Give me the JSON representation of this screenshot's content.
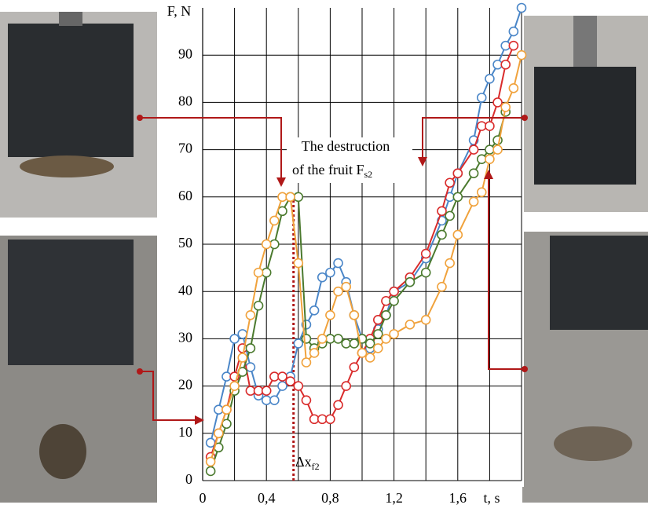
{
  "chart_data": {
    "type": "line",
    "y_label": "F, N",
    "x_label": "t, s",
    "annotation_lines": [
      "The destruction",
      "of the fruit F"
    ],
    "annotation_subscript": "s2",
    "marker_label": "Δx",
    "marker_subscript": "f2",
    "marker_x": 0.57,
    "marker_color": "#b01818",
    "x": [
      0.05,
      0.1,
      0.15,
      0.2,
      0.25,
      0.3,
      0.35,
      0.4,
      0.45,
      0.5,
      0.55,
      0.6,
      0.65,
      0.7,
      0.75,
      0.8,
      0.85,
      0.9,
      0.95,
      1.0,
      1.05,
      1.1,
      1.15,
      1.2,
      1.3,
      1.4,
      1.5,
      1.55,
      1.6,
      1.7,
      1.75,
      1.8,
      1.85,
      1.9,
      1.95,
      2.0
    ],
    "series": [
      {
        "color": "#4a86c8",
        "values": [
          8,
          15,
          22,
          30,
          31,
          24,
          18,
          17,
          17,
          20,
          22,
          29,
          33,
          36,
          43,
          44,
          46,
          42,
          35,
          30,
          28,
          32,
          35,
          40,
          42,
          47,
          55,
          60,
          65,
          72,
          81,
          85,
          88,
          92,
          95,
          100
        ]
      },
      {
        "color": "#d92b2b",
        "values": [
          5,
          10,
          15,
          22,
          28,
          19,
          19,
          19,
          22,
          22,
          21,
          20,
          17,
          13,
          13,
          13,
          16,
          20,
          24,
          27,
          30,
          34,
          38,
          40,
          43,
          48,
          57,
          63,
          65,
          70,
          75,
          75,
          80,
          88,
          92,
          null
        ]
      },
      {
        "color": "#4b7a2e",
        "values": [
          2,
          7,
          12,
          19,
          23,
          28,
          37,
          44,
          50,
          57,
          60,
          60,
          30,
          28,
          29,
          30,
          30,
          29,
          29,
          30,
          29,
          31,
          35,
          38,
          42,
          44,
          52,
          56,
          60,
          65,
          68,
          70,
          72,
          78,
          null,
          null
        ]
      },
      {
        "color": "#f0a23c",
        "values": [
          4,
          10,
          15,
          20,
          26,
          35,
          44,
          50,
          55,
          60,
          60,
          46,
          25,
          27,
          30,
          35,
          40,
          41,
          35,
          27,
          26,
          28,
          30,
          31,
          33,
          34,
          41,
          46,
          52,
          59,
          61,
          68,
          70,
          79,
          83,
          90
        ]
      }
    ],
    "xlim": [
      0,
      2.0
    ],
    "xticks": [
      0,
      {
        "value": 0.4,
        "label": "0,4"
      },
      {
        "value": 0.8,
        "label": "0,8"
      },
      {
        "value": 1.2,
        "label": "1,2"
      },
      {
        "value": 1.6,
        "label": "1,6"
      }
    ],
    "xgrid": [
      0.2,
      0.4,
      0.6,
      0.8,
      1.0,
      1.2,
      1.4,
      1.6,
      1.8,
      2.0
    ],
    "ylim": [
      0,
      100
    ],
    "yticks": [
      0,
      10,
      20,
      30,
      40,
      50,
      60,
      70,
      80,
      90
    ],
    "grid": true
  }
}
